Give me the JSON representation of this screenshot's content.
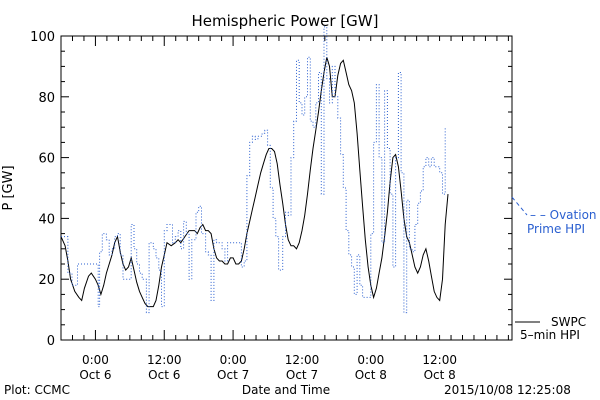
{
  "chart_data": {
    "type": "line",
    "title": "Hemispheric Power [GW]",
    "ylabel": "P [GW]",
    "xlabel": "Date and Time",
    "ylim": [
      0,
      100
    ],
    "xlim": [
      -0.25,
      3.025
    ],
    "x_unit": "days from 2015-10-06 00:00 UT",
    "y_ticks": [
      0,
      20,
      40,
      60,
      80,
      100
    ],
    "x_tick_labels": [
      {
        "x": 0.0,
        "time": "0:00",
        "date": "Oct 6"
      },
      {
        "x": 0.5,
        "time": "12:00",
        "date": "Oct 6"
      },
      {
        "x": 1.0,
        "time": "0:00",
        "date": "Oct 7"
      },
      {
        "x": 1.5,
        "time": "12:00",
        "date": "Oct 7"
      },
      {
        "x": 2.0,
        "time": "0:00",
        "date": "Oct 8"
      },
      {
        "x": 2.5,
        "time": "12:00",
        "date": "Oct 8"
      }
    ],
    "minor_x_step": 0.0833,
    "grid": false,
    "series": [
      {
        "name": "SWPC 5-min HPI",
        "color": "#000000",
        "style": "solid",
        "points": [
          [
            -0.25,
            34
          ],
          [
            -0.22,
            31
          ],
          [
            -0.2,
            26
          ],
          [
            -0.18,
            20
          ],
          [
            -0.15,
            16
          ],
          [
            -0.12,
            14
          ],
          [
            -0.1,
            13
          ],
          [
            -0.08,
            17
          ],
          [
            -0.05,
            21
          ],
          [
            -0.03,
            22
          ],
          [
            0.0,
            20
          ],
          [
            0.02,
            18
          ],
          [
            0.04,
            15
          ],
          [
            0.06,
            18
          ],
          [
            0.08,
            22
          ],
          [
            0.1,
            25
          ],
          [
            0.12,
            28
          ],
          [
            0.14,
            32
          ],
          [
            0.16,
            34
          ],
          [
            0.18,
            29
          ],
          [
            0.2,
            25
          ],
          [
            0.22,
            23
          ],
          [
            0.24,
            24
          ],
          [
            0.26,
            27
          ],
          [
            0.28,
            23
          ],
          [
            0.3,
            19
          ],
          [
            0.32,
            16
          ],
          [
            0.34,
            14
          ],
          [
            0.36,
            12
          ],
          [
            0.38,
            11
          ],
          [
            0.42,
            11
          ],
          [
            0.44,
            13
          ],
          [
            0.46,
            18
          ],
          [
            0.48,
            24
          ],
          [
            0.5,
            28
          ],
          [
            0.52,
            32
          ],
          [
            0.55,
            31
          ],
          [
            0.58,
            32
          ],
          [
            0.6,
            33
          ],
          [
            0.62,
            32
          ],
          [
            0.65,
            34
          ],
          [
            0.68,
            36
          ],
          [
            0.72,
            36
          ],
          [
            0.74,
            35
          ],
          [
            0.76,
            37
          ],
          [
            0.78,
            38
          ],
          [
            0.8,
            36
          ],
          [
            0.82,
            36
          ],
          [
            0.84,
            35
          ],
          [
            0.86,
            30
          ],
          [
            0.88,
            27
          ],
          [
            0.9,
            26
          ],
          [
            0.92,
            26
          ],
          [
            0.94,
            25
          ],
          [
            0.96,
            25
          ],
          [
            0.98,
            27
          ],
          [
            1.0,
            27
          ],
          [
            1.02,
            25
          ],
          [
            1.04,
            25
          ],
          [
            1.06,
            26
          ],
          [
            1.08,
            30
          ],
          [
            1.1,
            35
          ],
          [
            1.12,
            39
          ],
          [
            1.14,
            43
          ],
          [
            1.16,
            47
          ],
          [
            1.18,
            51
          ],
          [
            1.2,
            55
          ],
          [
            1.22,
            58
          ],
          [
            1.24,
            61
          ],
          [
            1.26,
            63
          ],
          [
            1.28,
            63
          ],
          [
            1.3,
            62
          ],
          [
            1.32,
            58
          ],
          [
            1.34,
            51
          ],
          [
            1.36,
            45
          ],
          [
            1.38,
            38
          ],
          [
            1.4,
            33
          ],
          [
            1.42,
            31
          ],
          [
            1.44,
            31
          ],
          [
            1.46,
            30
          ],
          [
            1.48,
            32
          ],
          [
            1.5,
            36
          ],
          [
            1.52,
            41
          ],
          [
            1.54,
            48
          ],
          [
            1.56,
            56
          ],
          [
            1.58,
            63
          ],
          [
            1.6,
            69
          ],
          [
            1.62,
            75
          ],
          [
            1.64,
            82
          ],
          [
            1.66,
            88
          ],
          [
            1.68,
            93
          ],
          [
            1.7,
            90
          ],
          [
            1.72,
            80
          ],
          [
            1.74,
            80
          ],
          [
            1.76,
            87
          ],
          [
            1.78,
            91
          ],
          [
            1.8,
            92
          ],
          [
            1.82,
            88
          ],
          [
            1.84,
            84
          ],
          [
            1.86,
            82
          ],
          [
            1.88,
            78
          ],
          [
            1.9,
            68
          ],
          [
            1.92,
            56
          ],
          [
            1.94,
            44
          ],
          [
            1.96,
            33
          ],
          [
            1.98,
            24
          ],
          [
            2.0,
            18
          ],
          [
            2.02,
            14
          ],
          [
            2.04,
            17
          ],
          [
            2.06,
            22
          ],
          [
            2.08,
            27
          ],
          [
            2.1,
            34
          ],
          [
            2.12,
            42
          ],
          [
            2.14,
            52
          ],
          [
            2.16,
            60
          ],
          [
            2.18,
            61
          ],
          [
            2.2,
            57
          ],
          [
            2.22,
            49
          ],
          [
            2.24,
            40
          ],
          [
            2.26,
            34
          ],
          [
            2.28,
            32
          ],
          [
            2.3,
            28
          ],
          [
            2.32,
            24
          ],
          [
            2.34,
            22
          ],
          [
            2.36,
            24
          ],
          [
            2.38,
            28
          ],
          [
            2.4,
            30
          ],
          [
            2.42,
            26
          ],
          [
            2.44,
            21
          ],
          [
            2.46,
            16
          ],
          [
            2.48,
            14
          ],
          [
            2.5,
            13
          ],
          [
            2.52,
            20
          ],
          [
            2.54,
            38
          ],
          [
            2.56,
            48
          ]
        ]
      },
      {
        "name": "Ovation Prime HPI",
        "color": "#2a5fd0",
        "style": "dotted-step",
        "points": [
          [
            -0.25,
            34
          ],
          [
            -0.2,
            22
          ],
          [
            -0.17,
            18
          ],
          [
            -0.13,
            25
          ],
          [
            -0.06,
            25
          ],
          [
            0.0,
            25
          ],
          [
            0.02,
            11
          ],
          [
            0.03,
            29
          ],
          [
            0.05,
            35
          ],
          [
            0.08,
            33
          ],
          [
            0.1,
            28
          ],
          [
            0.12,
            30
          ],
          [
            0.14,
            34
          ],
          [
            0.16,
            35
          ],
          [
            0.18,
            28
          ],
          [
            0.2,
            20
          ],
          [
            0.24,
            20
          ],
          [
            0.26,
            38
          ],
          [
            0.28,
            30
          ],
          [
            0.3,
            25
          ],
          [
            0.32,
            22
          ],
          [
            0.34,
            20
          ],
          [
            0.37,
            9
          ],
          [
            0.39,
            32
          ],
          [
            0.42,
            30
          ],
          [
            0.44,
            27
          ],
          [
            0.46,
            23
          ],
          [
            0.48,
            11
          ],
          [
            0.5,
            36
          ],
          [
            0.52,
            38
          ],
          [
            0.56,
            32
          ],
          [
            0.58,
            34
          ],
          [
            0.6,
            36
          ],
          [
            0.62,
            30
          ],
          [
            0.64,
            39
          ],
          [
            0.66,
            35
          ],
          [
            0.68,
            20
          ],
          [
            0.7,
            33
          ],
          [
            0.73,
            42
          ],
          [
            0.75,
            44
          ],
          [
            0.77,
            35
          ],
          [
            0.8,
            29
          ],
          [
            0.82,
            28
          ],
          [
            0.84,
            13
          ],
          [
            0.86,
            33
          ],
          [
            0.88,
            32
          ],
          [
            0.92,
            30
          ],
          [
            0.94,
            26
          ],
          [
            0.96,
            32
          ],
          [
            1.02,
            32
          ],
          [
            1.06,
            24
          ],
          [
            1.08,
            26
          ],
          [
            1.1,
            54
          ],
          [
            1.12,
            65
          ],
          [
            1.14,
            67
          ],
          [
            1.16,
            66
          ],
          [
            1.18,
            67
          ],
          [
            1.21,
            68
          ],
          [
            1.23,
            69
          ],
          [
            1.25,
            64
          ],
          [
            1.27,
            50
          ],
          [
            1.29,
            40
          ],
          [
            1.31,
            34
          ],
          [
            1.33,
            23
          ],
          [
            1.36,
            34
          ],
          [
            1.38,
            42
          ],
          [
            1.4,
            41
          ],
          [
            1.42,
            60
          ],
          [
            1.44,
            72
          ],
          [
            1.46,
            92
          ],
          [
            1.48,
            78
          ],
          [
            1.5,
            74
          ],
          [
            1.52,
            80
          ],
          [
            1.54,
            93
          ],
          [
            1.56,
            72
          ],
          [
            1.58,
            70
          ],
          [
            1.6,
            78
          ],
          [
            1.62,
            88
          ],
          [
            1.64,
            48
          ],
          [
            1.66,
            103
          ],
          [
            1.68,
            86
          ],
          [
            1.7,
            78
          ],
          [
            1.72,
            90
          ],
          [
            1.74,
            80
          ],
          [
            1.76,
            73
          ],
          [
            1.78,
            61
          ],
          [
            1.8,
            50
          ],
          [
            1.82,
            36
          ],
          [
            1.84,
            28
          ],
          [
            1.86,
            24
          ],
          [
            1.88,
            15
          ],
          [
            1.9,
            28
          ],
          [
            1.92,
            18
          ],
          [
            1.94,
            14
          ],
          [
            1.96,
            14
          ],
          [
            1.98,
            14
          ],
          [
            2.0,
            35
          ],
          [
            2.02,
            65
          ],
          [
            2.04,
            84
          ],
          [
            2.06,
            60
          ],
          [
            2.08,
            32
          ],
          [
            2.1,
            82
          ],
          [
            2.12,
            63
          ],
          [
            2.14,
            48
          ],
          [
            2.16,
            24
          ],
          [
            2.18,
            60
          ],
          [
            2.2,
            88
          ],
          [
            2.22,
            55
          ],
          [
            2.24,
            9
          ],
          [
            2.26,
            46
          ],
          [
            2.28,
            30
          ],
          [
            2.3,
            29
          ],
          [
            2.32,
            38
          ],
          [
            2.34,
            45
          ],
          [
            2.36,
            49
          ],
          [
            2.38,
            57
          ],
          [
            2.4,
            60
          ],
          [
            2.42,
            57
          ],
          [
            2.44,
            60
          ],
          [
            2.46,
            57
          ],
          [
            2.48,
            57
          ],
          [
            2.5,
            55
          ],
          [
            2.52,
            48
          ],
          [
            2.54,
            70
          ]
        ]
      }
    ],
    "legend": [
      {
        "label_lines": [
          "– – Ovation",
          "Prime HPI"
        ],
        "color": "#2a5fd0"
      },
      {
        "label_lines": [
          "SWPC",
          "5–min HPI"
        ],
        "color": "#000000"
      }
    ]
  },
  "footer": {
    "plot_credit": "Plot: CCMC",
    "axis_title": "Date and Time",
    "timestamp": "2015/10/08 12:25:08"
  }
}
